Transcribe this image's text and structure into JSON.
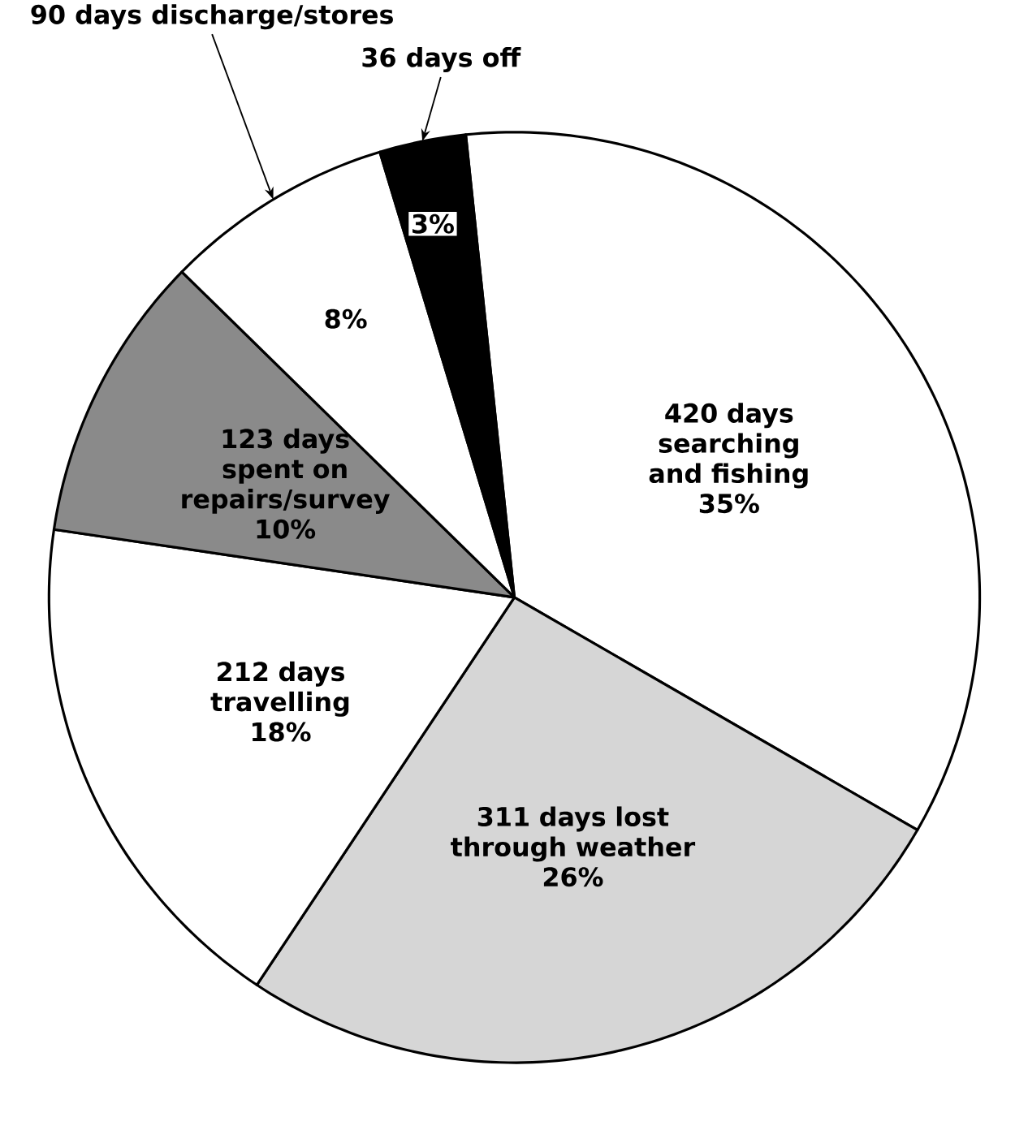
{
  "chart_data": {
    "type": "pie",
    "categories": [
      "420 days searching and fishing",
      "311 days lost through weather",
      "212 days travelling",
      "123 days spent on repairs/survey",
      "90 days discharge/stores",
      "36 days off"
    ],
    "values": [
      35,
      26,
      18,
      10,
      8,
      3
    ],
    "value_labels": [
      "35%",
      "26%",
      "18%",
      "10%",
      "8%",
      "3%"
    ],
    "colors": [
      "#ffffff",
      "#d6d6d6",
      "#ffffff",
      "#8a8a8a",
      "#ffffff",
      "#000000"
    ]
  }
}
